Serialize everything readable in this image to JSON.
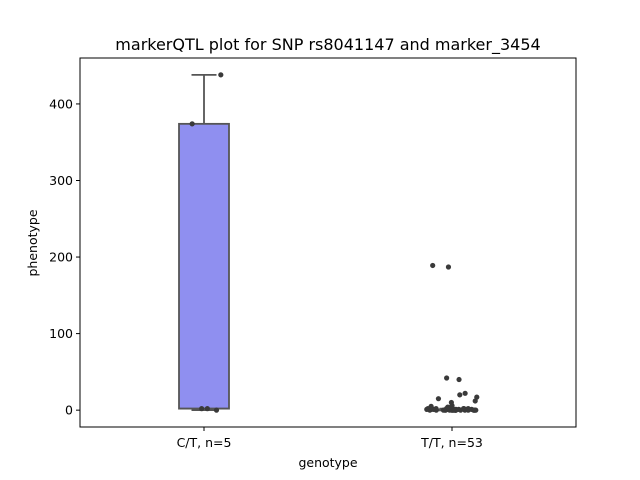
{
  "chart_data": {
    "type": "box",
    "title": "markerQTL plot for SNP rs8041147 and marker_3454",
    "xlabel": "genotype",
    "ylabel": "phenotype",
    "ylim": [
      -22,
      460
    ],
    "yticks": [
      0,
      100,
      200,
      300,
      400
    ],
    "grid": false,
    "categories": [
      "C/T, n=5",
      "T/T, n=53"
    ],
    "colors": {
      "box_fill": "#8f8ff0",
      "box_edge": "#555555",
      "point": "#3a3a3a"
    },
    "boxes": [
      {
        "category": "C/T, n=5",
        "whisker_low": 0,
        "q1": 2,
        "median": 2,
        "q3": 374,
        "whisker_high": 438
      },
      {
        "category": "T/T, n=53",
        "whisker_low": 0,
        "q1": 0,
        "median": 0,
        "q3": 1,
        "whisker_high": 2
      }
    ],
    "points": [
      {
        "category": "C/T, n=5",
        "values": [
          0,
          2,
          2,
          374,
          438
        ]
      },
      {
        "category": "T/T, n=53",
        "values": [
          0,
          0,
          0,
          0,
          0,
          0,
          0,
          0,
          0,
          0,
          0,
          0,
          0,
          0,
          0,
          0,
          0,
          0,
          0,
          0,
          0,
          1,
          1,
          1,
          1,
          1,
          1,
          1,
          1,
          1,
          1,
          2,
          2,
          2,
          2,
          2,
          2,
          2,
          3,
          3,
          4,
          5,
          6,
          10,
          12,
          15,
          17,
          20,
          22,
          40,
          42,
          187,
          189
        ]
      }
    ]
  }
}
